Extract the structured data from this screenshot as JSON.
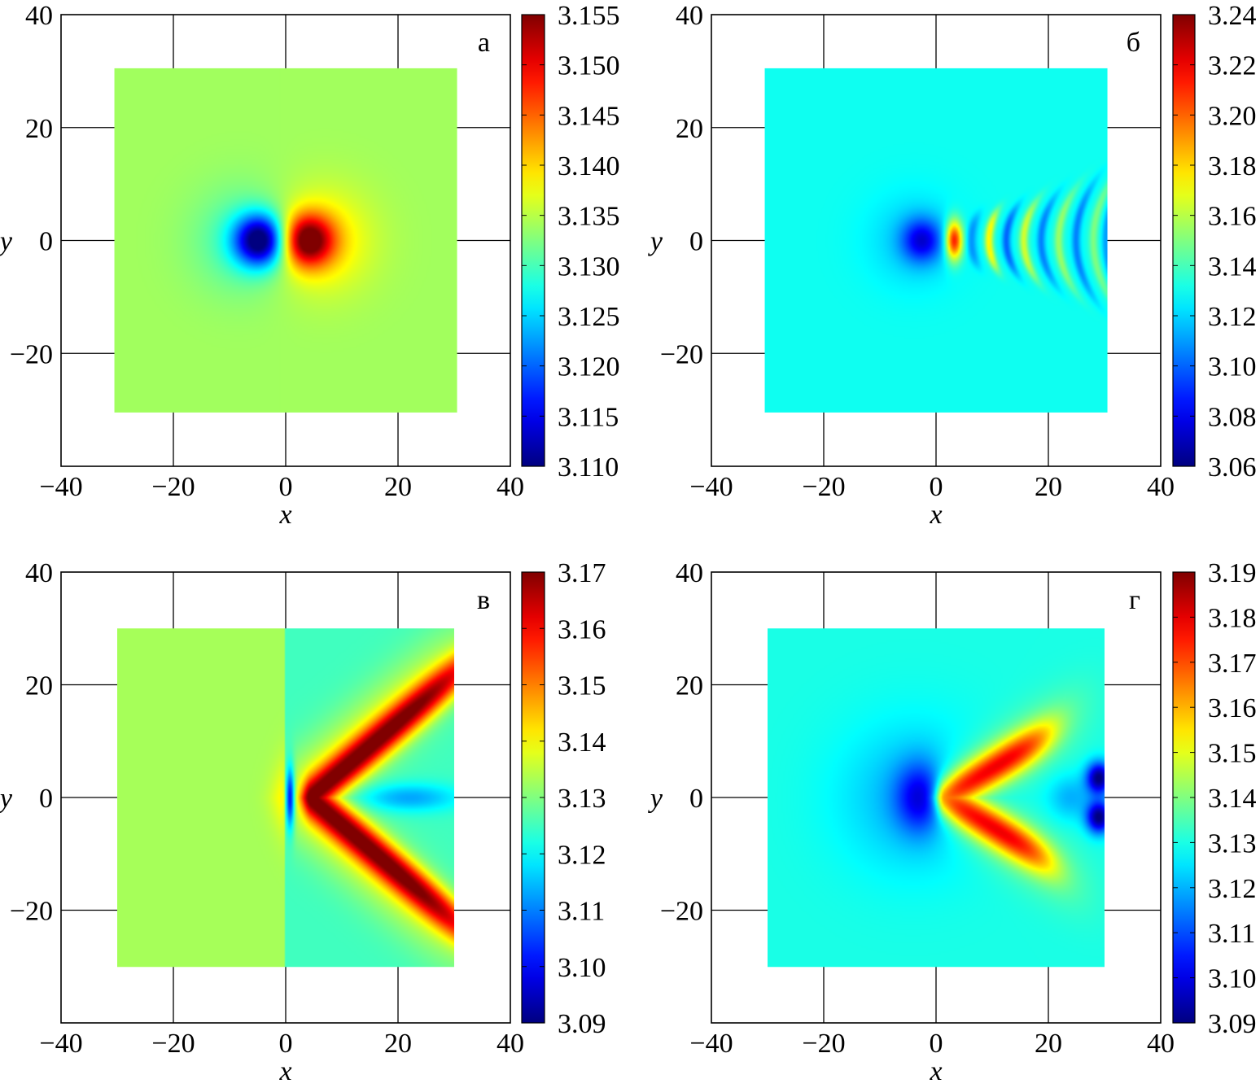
{
  "chart_data": [
    {
      "type": "heatmap",
      "panel_label": "а",
      "xlabel": "x",
      "ylabel": "y",
      "xlim": [
        -40,
        40
      ],
      "ylim": [
        -40,
        40
      ],
      "xticks": [
        "−40",
        "−20",
        "0",
        "20",
        "40"
      ],
      "yticks": [
        "40",
        "20",
        "0",
        "−20"
      ],
      "grid": true,
      "field_extent": {
        "x": [
          -30.5,
          30.5
        ],
        "y": [
          -30.5,
          30.5
        ]
      },
      "colorbar": {
        "range": [
          3.11,
          3.155
        ],
        "ticks": [
          "3.155",
          "3.150",
          "3.145",
          "3.140",
          "3.135",
          "3.130",
          "3.125",
          "3.120",
          "3.115",
          "3.110"
        ]
      },
      "field": {
        "background": 3.134,
        "features": [
          {
            "shape": "blob",
            "x": -4.5,
            "y": 0,
            "rx": 4.5,
            "ry": 4.5,
            "amplitude": -0.024
          },
          {
            "shape": "blob",
            "x": 3.8,
            "y": 0,
            "rx": 4.5,
            "ry": 4.5,
            "amplitude": 0.021
          },
          {
            "shape": "blob",
            "x": 6,
            "y": 0,
            "rx": 9,
            "ry": 9,
            "amplitude": 0.006
          },
          {
            "shape": "blob",
            "x": -7,
            "y": 0,
            "rx": 9,
            "ry": 9,
            "amplitude": -0.005
          }
        ]
      }
    },
    {
      "type": "heatmap",
      "panel_label": "б",
      "xlabel": "x",
      "ylabel": "y",
      "xlim": [
        -40,
        40
      ],
      "ylim": [
        -40,
        40
      ],
      "xticks": [
        "−40",
        "−20",
        "0",
        "20",
        "40"
      ],
      "yticks": [
        "40",
        "20",
        "0",
        "−20"
      ],
      "grid": true,
      "field_extent": {
        "x": [
          -30.5,
          30.5
        ],
        "y": [
          -30.5,
          30.5
        ]
      },
      "colorbar": {
        "range": [
          3.06,
          3.24
        ],
        "ticks": [
          "3.24",
          "3.22",
          "3.20",
          "3.18",
          "3.16",
          "3.14",
          "3.12",
          "3.10",
          "3.08",
          "3.06"
        ]
      },
      "field": {
        "background": 3.13,
        "features": [
          {
            "shape": "blob",
            "x": -2.5,
            "y": 0,
            "rx": 3.5,
            "ry": 3.8,
            "amplitude": -0.045
          },
          {
            "shape": "blob",
            "x": -4,
            "y": 0,
            "rx": 8,
            "ry": 8,
            "amplitude": -0.012
          },
          {
            "shape": "blob",
            "x": 3.2,
            "y": 0,
            "rx": 1.5,
            "ry": 3.5,
            "amplitude": 0.09
          },
          {
            "shape": "arc",
            "x": 6.3,
            "y": 0,
            "width": 0.9,
            "half_height": 4.8,
            "curvature": 0.05,
            "amplitude": -0.02
          },
          {
            "shape": "arc",
            "x": 9.4,
            "y": 0,
            "width": 0.8,
            "half_height": 5.4,
            "curvature": 0.05,
            "amplitude": 0.045
          },
          {
            "shape": "arc",
            "x": 12.5,
            "y": 0,
            "width": 0.8,
            "half_height": 6.3,
            "curvature": 0.05,
            "amplitude": -0.03
          },
          {
            "shape": "arc",
            "x": 15.6,
            "y": 0,
            "width": 0.8,
            "half_height": 7.2,
            "curvature": 0.045,
            "amplitude": 0.035
          },
          {
            "shape": "arc",
            "x": 18.7,
            "y": 0,
            "width": 0.8,
            "half_height": 8.2,
            "curvature": 0.04,
            "amplitude": -0.025
          },
          {
            "shape": "arc",
            "x": 21.8,
            "y": 0,
            "width": 0.8,
            "half_height": 9.3,
            "curvature": 0.035,
            "amplitude": 0.025
          },
          {
            "shape": "arc",
            "x": 24.9,
            "y": 0,
            "width": 0.8,
            "half_height": 10.5,
            "curvature": 0.03,
            "amplitude": -0.025
          },
          {
            "shape": "arc",
            "x": 28.0,
            "y": 0,
            "width": 0.8,
            "half_height": 11.8,
            "curvature": 0.028,
            "amplitude": 0.02
          },
          {
            "shape": "arc",
            "x": 30.2,
            "y": 0,
            "width": 0.7,
            "half_height": 13,
            "curvature": 0.025,
            "amplitude": -0.02
          }
        ]
      }
    },
    {
      "type": "heatmap",
      "panel_label": "в",
      "xlabel": "x",
      "ylabel": "y",
      "xlim": [
        -40,
        40
      ],
      "ylim": [
        -40,
        40
      ],
      "xticks": [
        "−40",
        "−20",
        "0",
        "20",
        "40"
      ],
      "yticks": [
        "40",
        "20",
        "0",
        "−20"
      ],
      "grid": true,
      "field_extent": {
        "x": [
          -30,
          30
        ],
        "y": [
          -30,
          30
        ]
      },
      "colorbar": {
        "range": [
          3.09,
          3.17
        ],
        "ticks": [
          "3.17",
          "3.16",
          "3.15",
          "3.14",
          "3.13",
          "3.12",
          "3.11",
          "3.10",
          "3.09"
        ]
      },
      "field": {
        "background": 3.133,
        "right_background": 3.125,
        "split_x": 0,
        "features": [
          {
            "shape": "blob",
            "x": 0.8,
            "y": 0,
            "rx": 0.8,
            "ry": 5.5,
            "amplitude": -0.035
          },
          {
            "shape": "chevron",
            "x": 4.5,
            "y": 0,
            "slope": 0.85,
            "thickness": 3.8,
            "amplitude": 0.038,
            "range": 32
          },
          {
            "shape": "chevron",
            "x": 1.5,
            "y": 0,
            "slope": 0.85,
            "thickness": 8,
            "amplitude": 0.012,
            "range": 32
          },
          {
            "shape": "blob",
            "x": 22,
            "y": 0,
            "rx": 9,
            "ry": 2.5,
            "amplitude": -0.012
          }
        ]
      }
    },
    {
      "type": "heatmap",
      "panel_label": "г",
      "xlabel": "x",
      "ylabel": "y",
      "xlim": [
        -40,
        40
      ],
      "ylim": [
        -40,
        40
      ],
      "xticks": [
        "−40",
        "−20",
        "0",
        "20",
        "40"
      ],
      "yticks": [
        "40",
        "20",
        "0",
        "−20"
      ],
      "grid": true,
      "field_extent": {
        "x": [
          -30,
          30
        ],
        "y": [
          -30,
          30
        ]
      },
      "colorbar": {
        "range": [
          3.09,
          3.19
        ],
        "ticks": [
          "3.19",
          "3.18",
          "3.17",
          "3.16",
          "3.15",
          "3.14",
          "3.13",
          "3.12",
          "3.11",
          "3.10",
          "3.09"
        ]
      },
      "field": {
        "background": 3.13,
        "features": [
          {
            "shape": "blob",
            "x": -2.5,
            "y": 0,
            "rx": 4.5,
            "ry": 6,
            "amplitude": -0.024
          },
          {
            "shape": "blob",
            "x": -4,
            "y": 0,
            "rx": 13,
            "ry": 13,
            "amplitude": -0.01
          },
          {
            "shape": "chevron",
            "x": 1.5,
            "y": 0,
            "slope": 0.6,
            "thickness": 3.5,
            "amplitude": 0.042,
            "range": 19
          },
          {
            "shape": "chevron",
            "x": 0.5,
            "y": 0,
            "slope": 0.6,
            "thickness": 6.5,
            "amplitude": 0.01,
            "range": 26
          },
          {
            "shape": "blob",
            "x": 29,
            "y": 3.5,
            "rx": 2.2,
            "ry": 2.8,
            "amplitude": -0.04
          },
          {
            "shape": "blob",
            "x": 29,
            "y": -3.5,
            "rx": 2.2,
            "ry": 2.8,
            "amplitude": -0.04
          },
          {
            "shape": "blob",
            "x": 24,
            "y": 0,
            "rx": 4,
            "ry": 4,
            "amplitude": -0.01
          }
        ]
      }
    }
  ]
}
